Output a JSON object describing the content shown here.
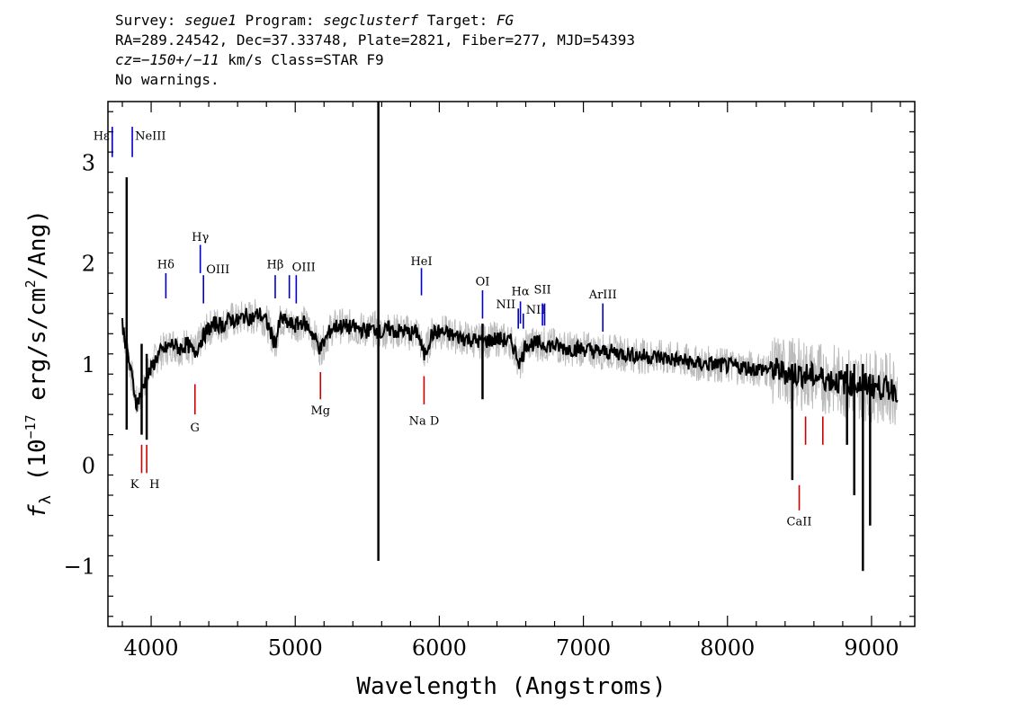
{
  "header": {
    "line1": {
      "survey_key": "Survey: ",
      "survey": "segue1",
      "program_key": " Program: ",
      "program": "segclusterf",
      "target_key": " Target: ",
      "target": "FG"
    },
    "line2": "RA=289.24542, Dec=37.33748, Plate=2821, Fiber=277, MJD=54393",
    "line3": {
      "cz_key": "cz",
      "cz_value": "=−150+/−11",
      "rest": " km/s Class=STAR F9"
    },
    "line4": "No warnings."
  },
  "chart_data": {
    "type": "line",
    "xlabel": "Wavelength (Angstroms)",
    "ylabel": "fλ (10⁻¹⁷ erg/s/cm²/Ang)",
    "ylabel_parts": {
      "symbol": "f",
      "subscript": "λ",
      "unit_prefix": " (10",
      "exponent": "−17",
      "unit_mid": " erg/s/cm",
      "unit_exp": "2",
      "unit_suffix": "/Ang)"
    },
    "xlim": [
      3700,
      9300
    ],
    "ylim": [
      -1.6,
      3.6
    ],
    "xticks": [
      4000,
      5000,
      6000,
      7000,
      8000,
      9000
    ],
    "yticks": [
      -1,
      0,
      1,
      2,
      3
    ],
    "ytick_labels": [
      "−1",
      "0",
      "1",
      "2",
      "3"
    ],
    "series": [
      {
        "color": "#000000",
        "smooth_points": [
          [
            3800,
            1.4
          ],
          [
            3850,
            1.0
          ],
          [
            3900,
            0.6
          ],
          [
            3950,
            0.8
          ],
          [
            4000,
            0.95
          ],
          [
            4050,
            1.1
          ],
          [
            4100,
            1.15
          ],
          [
            4150,
            1.2
          ],
          [
            4200,
            1.15
          ],
          [
            4250,
            1.2
          ],
          [
            4300,
            1.1
          ],
          [
            4350,
            1.25
          ],
          [
            4400,
            1.35
          ],
          [
            4450,
            1.4
          ],
          [
            4500,
            1.38
          ],
          [
            4550,
            1.45
          ],
          [
            4600,
            1.42
          ],
          [
            4650,
            1.48
          ],
          [
            4700,
            1.45
          ],
          [
            4750,
            1.5
          ],
          [
            4800,
            1.42
          ],
          [
            4860,
            1.2
          ],
          [
            4900,
            1.45
          ],
          [
            4950,
            1.4
          ],
          [
            5000,
            1.38
          ],
          [
            5050,
            1.42
          ],
          [
            5100,
            1.35
          ],
          [
            5175,
            1.15
          ],
          [
            5250,
            1.35
          ],
          [
            5300,
            1.38
          ],
          [
            5400,
            1.36
          ],
          [
            5500,
            1.33
          ],
          [
            5560,
            1.35
          ],
          [
            5600,
            1.3
          ],
          [
            5650,
            1.35
          ],
          [
            5700,
            1.32
          ],
          [
            5750,
            1.33
          ],
          [
            5800,
            1.3
          ],
          [
            5850,
            1.32
          ],
          [
            5893,
            1.08
          ],
          [
            5950,
            1.3
          ],
          [
            6000,
            1.32
          ],
          [
            6100,
            1.28
          ],
          [
            6200,
            1.25
          ],
          [
            6300,
            1.22
          ],
          [
            6400,
            1.25
          ],
          [
            6500,
            1.22
          ],
          [
            6563,
            1.0
          ],
          [
            6600,
            1.2
          ],
          [
            6700,
            1.2
          ],
          [
            6800,
            1.18
          ],
          [
            6900,
            1.15
          ],
          [
            7000,
            1.15
          ],
          [
            7100,
            1.12
          ],
          [
            7200,
            1.12
          ],
          [
            7300,
            1.1
          ],
          [
            7400,
            1.08
          ],
          [
            7500,
            1.07
          ],
          [
            7600,
            1.05
          ],
          [
            7700,
            1.03
          ],
          [
            7800,
            1.0
          ],
          [
            7900,
            1.0
          ],
          [
            8000,
            0.98
          ],
          [
            8100,
            0.97
          ],
          [
            8200,
            0.95
          ],
          [
            8300,
            0.95
          ],
          [
            8400,
            0.92
          ],
          [
            8500,
            0.9
          ],
          [
            8600,
            0.88
          ],
          [
            8700,
            0.85
          ],
          [
            8800,
            0.82
          ],
          [
            8900,
            0.8
          ],
          [
            9000,
            0.78
          ],
          [
            9100,
            0.76
          ],
          [
            9180,
            0.75
          ]
        ],
        "spikes": [
          {
            "x": 3830,
            "y_low": 0.35,
            "y_high": 2.85
          },
          {
            "x": 3934,
            "y_low": 0.3,
            "y_high": 1.2
          },
          {
            "x": 3969,
            "y_low": 0.25,
            "y_high": 1.1
          },
          {
            "x": 5577,
            "y_low": -0.95,
            "y_high": 3.6
          },
          {
            "x": 6300,
            "y_low": 0.65,
            "y_high": 1.4
          },
          {
            "x": 8450,
            "y_low": -0.15,
            "y_high": 1.0
          },
          {
            "x": 8830,
            "y_low": 0.2,
            "y_high": 1.0
          },
          {
            "x": 8880,
            "y_low": -0.3,
            "y_high": 1.0
          },
          {
            "x": 8940,
            "y_low": -1.05,
            "y_high": 1.0
          },
          {
            "x": 8990,
            "y_low": -0.6,
            "y_high": 0.9
          }
        ]
      },
      {
        "color": "#bbbbbb",
        "note_spread": 0.18
      }
    ],
    "emission_lines": [
      {
        "label": "Hε",
        "x": 3730,
        "y_low": 3.05,
        "y_high": 3.35,
        "label_y": 3.22,
        "label_side": "left"
      },
      {
        "label": "NeIII",
        "x": 3869,
        "y_low": 3.05,
        "y_high": 3.35,
        "label_y": 3.22,
        "label_side": "right"
      },
      {
        "label": "Hδ",
        "x": 4102,
        "y_low": 1.65,
        "y_high": 1.9,
        "label_y": 1.95
      },
      {
        "label": "Hγ",
        "x": 4341,
        "y_low": 1.9,
        "y_high": 2.18,
        "label_y": 2.22
      },
      {
        "label": "OIII",
        "x": 4363,
        "y_low": 1.6,
        "y_high": 1.88,
        "label_y": 1.9,
        "label_side": "right"
      },
      {
        "label": "Hβ",
        "x": 4861,
        "y_low": 1.65,
        "y_high": 1.88,
        "label_y": 1.95
      },
      {
        "label": "OIII",
        "x": 4959,
        "y_low": 1.65,
        "y_high": 1.88,
        "label_y": 1.92,
        "label_side": "right"
      },
      {
        "label": "",
        "x": 5007,
        "y_low": 1.6,
        "y_high": 1.88
      },
      {
        "label": "HeI",
        "x": 5876,
        "y_low": 1.68,
        "y_high": 1.95,
        "label_y": 1.98
      },
      {
        "label": "OI",
        "x": 6300,
        "y_low": 1.45,
        "y_high": 1.73,
        "label_y": 1.78
      },
      {
        "label": "NII",
        "x": 6548,
        "y_low": 1.35,
        "y_high": 1.55,
        "label_y": 1.55,
        "label_side": "left"
      },
      {
        "label": "Hα",
        "x": 6563,
        "y_low": 1.4,
        "y_high": 1.62,
        "label_y": 1.68
      },
      {
        "label": "NII",
        "x": 6583,
        "y_low": 1.35,
        "y_high": 1.5,
        "label_y": 1.5,
        "label_side": "right"
      },
      {
        "label": "SII",
        "x": 6716,
        "y_low": 1.38,
        "y_high": 1.6,
        "label_y": 1.7
      },
      {
        "label": "",
        "x": 6731,
        "y_low": 1.38,
        "y_high": 1.6
      },
      {
        "label": "ArIII",
        "x": 7135,
        "y_low": 1.32,
        "y_high": 1.6,
        "label_y": 1.65
      }
    ],
    "absorption_lines": [
      {
        "label": "K",
        "x": 3934,
        "y_low": -0.08,
        "y_high": 0.2,
        "label_y": -0.23,
        "label_side": "left"
      },
      {
        "label": "H",
        "x": 3969,
        "y_low": -0.08,
        "y_high": 0.2,
        "label_y": -0.23,
        "label_side": "right"
      },
      {
        "label": "G",
        "x": 4304,
        "y_low": 0.5,
        "y_high": 0.8,
        "label_y": 0.33
      },
      {
        "label": "Mg",
        "x": 5175,
        "y_low": 0.65,
        "y_high": 0.92,
        "label_y": 0.5
      },
      {
        "label": "Na  D",
        "x": 5894,
        "y_low": 0.6,
        "y_high": 0.88,
        "label_y": 0.4
      },
      {
        "label": "CaII",
        "x": 8498,
        "y_low": -0.45,
        "y_high": -0.2,
        "label_y": -0.6
      },
      {
        "label": "",
        "x": 8542,
        "y_low": 0.2,
        "y_high": 0.48
      },
      {
        "label": "",
        "x": 8662,
        "y_low": 0.2,
        "y_high": 0.48
      }
    ]
  }
}
